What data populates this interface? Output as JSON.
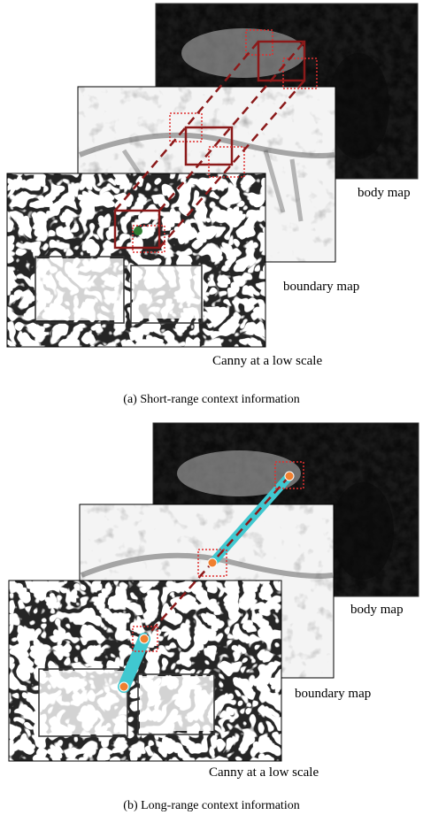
{
  "panel_a": {
    "layers": {
      "body": "body map",
      "boundary": "boundary map",
      "canny": "Canny at a low scale"
    },
    "caption": "(a) Short-range context information"
  },
  "panel_b": {
    "layers": {
      "body": "body map",
      "boundary": "boundary map",
      "canny": "Canny at a low scale"
    },
    "caption": "(b) Long-range context information"
  },
  "colors": {
    "box": "#8b1a1a",
    "box_dotted": "#e03030",
    "link": "#8b1a1a",
    "long_range": "#40c8d0",
    "point": "#f08030",
    "seed": "#2e7d32"
  }
}
